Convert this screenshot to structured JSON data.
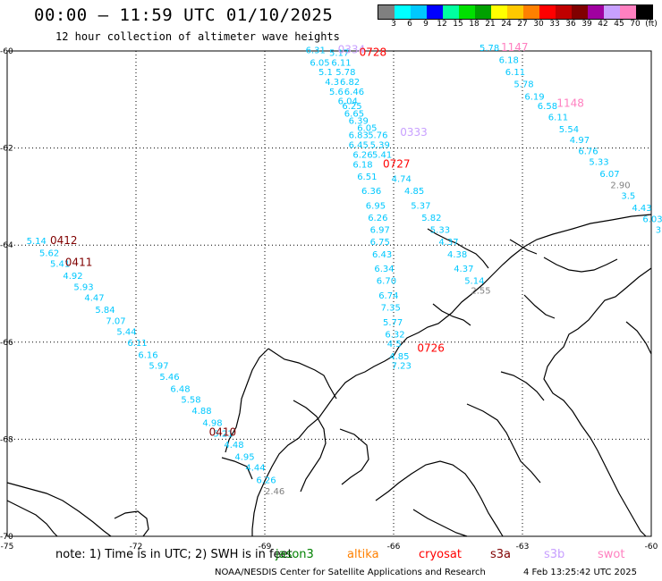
{
  "title": "00:00 – 11:59 UTC 01/10/2025",
  "subtitle": "12 hour collection of altimeter wave heights",
  "colorbar": {
    "colors": [
      "#808080",
      "#00ffff",
      "#00c8ff",
      "#0000ff",
      "#00ffa0",
      "#00e000",
      "#00a000",
      "#ffff00",
      "#ffc800",
      "#ff8000",
      "#ff0000",
      "#c00000",
      "#800000",
      "#a000a0",
      "#c8a0ff",
      "#ff80c0",
      "#000000"
    ],
    "labels": [
      "3",
      "6",
      "9",
      "12",
      "15",
      "18",
      "21",
      "24",
      "27",
      "30",
      "33",
      "36",
      "39",
      "42",
      "45",
      "70",
      "(ft)"
    ]
  },
  "axes": {
    "lat_labels": [
      "-60",
      "-62",
      "-64",
      "-66",
      "-68",
      "-70"
    ],
    "lon_labels": [
      "-75",
      "-72",
      "-69",
      "-66",
      "-63",
      "-60"
    ]
  },
  "map": {
    "projection": "equirectangular",
    "lon_range": [
      -75,
      -60
    ],
    "lat_range": [
      -70,
      -60
    ],
    "land_color": "#000000",
    "grid": "dotted",
    "overlapping_labels_note": "some labels overlap as in original"
  },
  "tracks": [
    {
      "name": "left",
      "labels": [
        {
          "text": "5.14",
          "color": "#00c8ff",
          "lon": -74.55,
          "lat": -63.98
        },
        {
          "text": "5.62",
          "color": "#00c8ff",
          "lon": -74.25,
          "lat": -64.23
        },
        {
          "text": "5.41",
          "color": "#00c8ff",
          "lon": -74.0,
          "lat": -64.45
        },
        {
          "text": "4.92",
          "color": "#00c8ff",
          "lon": -73.7,
          "lat": -64.7
        },
        {
          "text": "5.93",
          "color": "#00c8ff",
          "lon": -73.45,
          "lat": -64.93
        },
        {
          "text": "4.47",
          "color": "#00c8ff",
          "lon": -73.2,
          "lat": -65.15
        },
        {
          "text": "5.84",
          "color": "#00c8ff",
          "lon": -72.95,
          "lat": -65.4
        },
        {
          "text": "7.07",
          "color": "#00c8ff",
          "lon": -72.7,
          "lat": -65.63
        },
        {
          "text": "5.44",
          "color": "#00c8ff",
          "lon": -72.45,
          "lat": -65.85
        },
        {
          "text": "6.11",
          "color": "#00c8ff",
          "lon": -72.2,
          "lat": -66.08
        },
        {
          "text": "6.16",
          "color": "#00c8ff",
          "lon": -71.95,
          "lat": -66.33
        },
        {
          "text": "5.97",
          "color": "#00c8ff",
          "lon": -71.7,
          "lat": -66.55
        },
        {
          "text": "5.46",
          "color": "#00c8ff",
          "lon": -71.45,
          "lat": -66.78
        },
        {
          "text": "6.48",
          "color": "#00c8ff",
          "lon": -71.2,
          "lat": -67.03
        },
        {
          "text": "5.58",
          "color": "#00c8ff",
          "lon": -70.95,
          "lat": -67.25
        },
        {
          "text": "4.88",
          "color": "#00c8ff",
          "lon": -70.7,
          "lat": -67.48
        },
        {
          "text": "4.98",
          "color": "#00c8ff",
          "lon": -70.45,
          "lat": -67.73
        },
        {
          "text": "5.21",
          "color": "#00c8ff",
          "lon": -70.2,
          "lat": -67.95
        },
        {
          "text": "4.48",
          "color": "#00c8ff",
          "lon": -69.95,
          "lat": -68.18
        },
        {
          "text": "4.95",
          "color": "#00c8ff",
          "lon": -69.7,
          "lat": -68.43
        },
        {
          "text": "4.44",
          "color": "#00c8ff",
          "lon": -69.45,
          "lat": -68.65
        },
        {
          "text": "6.26",
          "color": "#00c8ff",
          "lon": -69.2,
          "lat": -68.9
        },
        {
          "text": "2.46",
          "color": "#808080",
          "lon": -69.0,
          "lat": -69.13
        }
      ],
      "times": [
        {
          "text": "0412",
          "color": "#800000",
          "lon": -74.0,
          "lat": -63.98
        },
        {
          "text": "0411",
          "color": "#800000",
          "lon": -73.65,
          "lat": -64.43
        },
        {
          "text": "0410",
          "color": "#800000",
          "lon": -70.3,
          "lat": -67.93
        }
      ]
    },
    {
      "name": "middle",
      "labels": [
        {
          "text": "6.31",
          "color": "#00c8ff",
          "lon": -68.05,
          "lat": -60.05
        },
        {
          "text": "5.17",
          "color": "#00c8ff",
          "lon": -67.5,
          "lat": -60.1
        },
        {
          "text": "6.05",
          "color": "#00c8ff",
          "lon": -67.95,
          "lat": -60.3
        },
        {
          "text": "6.11",
          "color": "#00c8ff",
          "lon": -67.45,
          "lat": -60.3
        },
        {
          "text": "5.1",
          "color": "#00c8ff",
          "lon": -67.75,
          "lat": -60.5
        },
        {
          "text": "5.78",
          "color": "#00c8ff",
          "lon": -67.35,
          "lat": -60.5
        },
        {
          "text": "4.3",
          "color": "#00c8ff",
          "lon": -67.6,
          "lat": -60.7
        },
        {
          "text": "6.82",
          "color": "#00c8ff",
          "lon": -67.25,
          "lat": -60.7
        },
        {
          "text": "5.6",
          "color": "#00c8ff",
          "lon": -67.5,
          "lat": -60.9
        },
        {
          "text": "6.46",
          "color": "#00c8ff",
          "lon": -67.15,
          "lat": -60.9
        },
        {
          "text": "6.04",
          "color": "#00c8ff",
          "lon": -67.3,
          "lat": -61.1
        },
        {
          "text": "6.25",
          "color": "#00c8ff",
          "lon": -67.2,
          "lat": -61.2
        },
        {
          "text": "6.65",
          "color": "#00c8ff",
          "lon": -67.15,
          "lat": -61.35
        },
        {
          "text": "6.39",
          "color": "#00c8ff",
          "lon": -67.05,
          "lat": -61.5
        },
        {
          "text": "6.05",
          "color": "#00c8ff",
          "lon": -66.85,
          "lat": -61.65
        },
        {
          "text": "5.76",
          "color": "#00c8ff",
          "lon": -66.6,
          "lat": -61.8
        },
        {
          "text": "6.83",
          "color": "#00c8ff",
          "lon": -67.05,
          "lat": -61.8
        },
        {
          "text": "6.45",
          "color": "#00c8ff",
          "lon": -67.05,
          "lat": -62.0
        },
        {
          "text": "5.39",
          "color": "#00c8ff",
          "lon": -66.55,
          "lat": -62.0
        },
        {
          "text": "6.26",
          "color": "#00c8ff",
          "lon": -66.95,
          "lat": -62.2
        },
        {
          "text": "5.41",
          "color": "#00c8ff",
          "lon": -66.5,
          "lat": -62.2
        },
        {
          "text": "6.18",
          "color": "#00c8ff",
          "lon": -66.95,
          "lat": -62.4
        },
        {
          "text": "6.51",
          "color": "#00c8ff",
          "lon": -66.85,
          "lat": -62.65
        },
        {
          "text": "4.74",
          "color": "#00c8ff",
          "lon": -66.05,
          "lat": -62.7
        },
        {
          "text": "6.36",
          "color": "#00c8ff",
          "lon": -66.75,
          "lat": -62.95
        },
        {
          "text": "4.85",
          "color": "#00c8ff",
          "lon": -65.75,
          "lat": -62.95
        },
        {
          "text": "6.95",
          "color": "#00c8ff",
          "lon": -66.65,
          "lat": -63.25
        },
        {
          "text": "5.37",
          "color": "#00c8ff",
          "lon": -65.6,
          "lat": -63.25
        },
        {
          "text": "6.26",
          "color": "#00c8ff",
          "lon": -66.6,
          "lat": -63.5
        },
        {
          "text": "5.82",
          "color": "#00c8ff",
          "lon": -65.35,
          "lat": -63.5
        },
        {
          "text": "6.97",
          "color": "#00c8ff",
          "lon": -66.55,
          "lat": -63.75
        },
        {
          "text": "5.33",
          "color": "#00c8ff",
          "lon": -65.15,
          "lat": -63.75
        },
        {
          "text": "6.75",
          "color": "#00c8ff",
          "lon": -66.55,
          "lat": -64.0
        },
        {
          "text": "4.37",
          "color": "#00c8ff",
          "lon": -64.95,
          "lat": -64.0
        },
        {
          "text": "6.43",
          "color": "#00c8ff",
          "lon": -66.5,
          "lat": -64.25
        },
        {
          "text": "4.38",
          "color": "#00c8ff",
          "lon": -64.75,
          "lat": -64.25
        },
        {
          "text": "6.34",
          "color": "#00c8ff",
          "lon": -66.45,
          "lat": -64.55
        },
        {
          "text": "4.37",
          "color": "#00c8ff",
          "lon": -64.6,
          "lat": -64.55
        },
        {
          "text": "6.70",
          "color": "#00c8ff",
          "lon": -66.4,
          "lat": -64.8
        },
        {
          "text": "5.14",
          "color": "#00c8ff",
          "lon": -64.35,
          "lat": -64.8
        },
        {
          "text": "6.74",
          "color": "#00c8ff",
          "lon": -66.35,
          "lat": -65.1
        },
        {
          "text": "2.55",
          "color": "#808080",
          "lon": -64.2,
          "lat": -65.0
        },
        {
          "text": "7.35",
          "color": "#00c8ff",
          "lon": -66.3,
          "lat": -65.35
        },
        {
          "text": "5.77",
          "color": "#00c8ff",
          "lon": -66.25,
          "lat": -65.65
        },
        {
          "text": "6.32",
          "color": "#00c8ff",
          "lon": -66.2,
          "lat": -65.9
        },
        {
          "text": "4.5",
          "color": "#00c8ff",
          "lon": -66.15,
          "lat": -66.1
        },
        {
          "text": "4.85",
          "color": "#00c8ff",
          "lon": -66.1,
          "lat": -66.35
        },
        {
          "text": "7.23",
          "color": "#00c8ff",
          "lon": -66.05,
          "lat": -66.55
        }
      ],
      "times": [
        {
          "text": "0334",
          "color": "#c8a0ff",
          "lon": -67.3,
          "lat": -60.05
        },
        {
          "text": "0728",
          "color": "#ff0000",
          "lon": -66.8,
          "lat": -60.1
        },
        {
          "text": "0333",
          "color": "#c8a0ff",
          "lon": -65.85,
          "lat": -61.75
        },
        {
          "text": "0727",
          "color": "#ff0000",
          "lon": -66.25,
          "lat": -62.4
        },
        {
          "text": "0726",
          "color": "#ff0000",
          "lon": -65.45,
          "lat": -66.2
        }
      ]
    },
    {
      "name": "right",
      "labels": [
        {
          "text": "5.78",
          "color": "#00c8ff",
          "lon": -64.0,
          "lat": -60.0
        },
        {
          "text": "6.18",
          "color": "#00c8ff",
          "lon": -63.55,
          "lat": -60.25
        },
        {
          "text": "6.11",
          "color": "#00c8ff",
          "lon": -63.4,
          "lat": -60.5
        },
        {
          "text": "5.78",
          "color": "#00c8ff",
          "lon": -63.2,
          "lat": -60.75
        },
        {
          "text": "6.19",
          "color": "#00c8ff",
          "lon": -62.95,
          "lat": -61.0
        },
        {
          "text": "6.58",
          "color": "#00c8ff",
          "lon": -62.65,
          "lat": -61.2
        },
        {
          "text": "6.11",
          "color": "#00c8ff",
          "lon": -62.4,
          "lat": -61.43
        },
        {
          "text": "5.54",
          "color": "#00c8ff",
          "lon": -62.15,
          "lat": -61.68
        },
        {
          "text": "4.97",
          "color": "#00c8ff",
          "lon": -61.9,
          "lat": -61.9
        },
        {
          "text": "6.76",
          "color": "#00c8ff",
          "lon": -61.7,
          "lat": -62.13
        },
        {
          "text": "5.33",
          "color": "#00c8ff",
          "lon": -61.45,
          "lat": -62.35
        },
        {
          "text": "6.07",
          "color": "#00c8ff",
          "lon": -61.2,
          "lat": -62.6
        },
        {
          "text": "2.90",
          "color": "#808080",
          "lon": -60.95,
          "lat": -62.83
        },
        {
          "text": "3.5",
          "color": "#00c8ff",
          "lon": -60.7,
          "lat": -63.05
        },
        {
          "text": "4.43",
          "color": "#00c8ff",
          "lon": -60.45,
          "lat": -63.3
        },
        {
          "text": "6.03",
          "color": "#00c8ff",
          "lon": -60.2,
          "lat": -63.53
        },
        {
          "text": "3.9",
          "color": "#00c8ff",
          "lon": -59.9,
          "lat": -63.75
        }
      ],
      "times": [
        {
          "text": "1147",
          "color": "#ff80c0",
          "lon": -63.5,
          "lat": -60.0
        },
        {
          "text": "1148",
          "color": "#ff80c0",
          "lon": -62.2,
          "lat": -61.15
        }
      ]
    }
  ],
  "note": "note: 1) Time is in UTC; 2) SWH is in feet",
  "satellites": [
    {
      "name": "jason3",
      "color": "#008000"
    },
    {
      "name": "altika",
      "color": "#ff8000"
    },
    {
      "name": "cryosat",
      "color": "#ff0000"
    },
    {
      "name": "s3a",
      "color": "#800000"
    },
    {
      "name": "s3b",
      "color": "#c8a0ff"
    },
    {
      "name": "swot",
      "color": "#ff80c0"
    }
  ],
  "credit": "NOAA/NESDIS Center for Satellite Applications and Research",
  "credit_date": "4 Feb 13:25:42 UTC 2025"
}
